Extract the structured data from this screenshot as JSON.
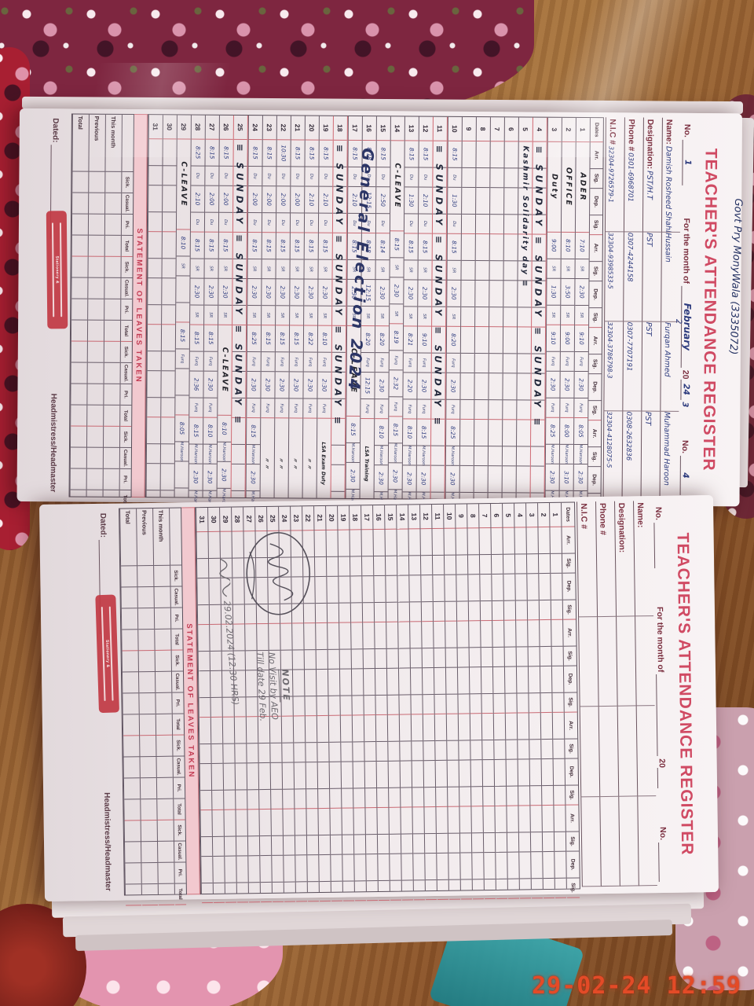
{
  "photo": {
    "timestamp": "29-02-24  12:59"
  },
  "form": {
    "title": "TEACHER'S ATTENDANCE REGISTER",
    "no_label": "No.",
    "month_label": "For the month of",
    "year_prefix": "20",
    "name_label": "Name:",
    "designation_label": "Designation:",
    "phone_label": "Phone #",
    "nic_label": "N.I.C #",
    "dates_label": "Dates",
    "col_headers": [
      "Arr.",
      "Sig.",
      "Dep.",
      "Sig."
    ],
    "leaves_title": "STATEMENT OF LEAVES TAKEN",
    "leaves_cols": [
      "Sick.",
      "Casual.",
      "Pri.",
      "Total"
    ],
    "leaves_rows": [
      "This month",
      "Previous",
      "Total"
    ],
    "dated_label": "Dated:",
    "head_label": "Headmistress/Headmaster",
    "stamp_text": "Stationery &"
  },
  "page1": {
    "school_note": "Govt Pry MonyWala (3335072)",
    "month": "February",
    "year": "24",
    "col_numbers": [
      "1",
      "2",
      "3",
      "4"
    ],
    "teachers": [
      {
        "name": "Damish Rosheed Shahbaz",
        "designation": "PST/H.T",
        "phone": "0301-6968701",
        "nic": "32304-9726579-1",
        "sig": "Du"
      },
      {
        "name": "Hussain",
        "designation": "PST",
        "phone": "0307-4244158",
        "nic": "32304-9398533-5",
        "sig": "SR"
      },
      {
        "name": "Furqan Ahmed",
        "designation": "PST",
        "phone": "0307-7707191",
        "nic": "32304-3786798-3",
        "sig": "Furq"
      },
      {
        "name": "Muhammad Haroon",
        "designation": "PST",
        "phone": "0308-2632836",
        "nic": "32304-4128075-5",
        "sig": "M.Haroon"
      }
    ],
    "election_note": "General Election 2024",
    "rows": [
      {
        "d": "1",
        "g": [
          {
            "note": "ADER",
            "big": true
          },
          {
            "a": "7:10",
            "dp": "2:30"
          },
          {
            "a": "9:10",
            "dp": "2:30"
          },
          {
            "a": "8:05",
            "dp": "2:30"
          }
        ]
      },
      {
        "d": "2",
        "g": [
          {
            "note": "OFFICE",
            "big": true
          },
          {
            "a": "8:10",
            "dp": "3:50"
          },
          {
            "a": "9:00",
            "dp": "2:30"
          },
          {
            "a": "8:00",
            "dp": "3:10"
          }
        ]
      },
      {
        "d": "3",
        "g": [
          {
            "note": "Duty",
            "big": true
          },
          {
            "a": "9:00",
            "dp": "1:30"
          },
          {
            "a": "9:10",
            "dp": "2:30"
          },
          {
            "a": "8:25",
            "dp": "2:30"
          }
        ]
      },
      {
        "d": "4",
        "span": "≡ SUNDAY ≡ SUNDAY ≡ SUNDAY ≡",
        "cls": "week"
      },
      {
        "d": "5",
        "span": "Kashmir Solidarity day ≡",
        "spanCls": "small"
      },
      {
        "d": "6"
      },
      {
        "d": "7"
      },
      {
        "d": "8"
      },
      {
        "d": "9"
      },
      {
        "d": "10",
        "g": [
          {
            "a": "8:15",
            "dp": "1:30"
          },
          {
            "a": "8:15",
            "dp": "2:30"
          },
          {
            "a": "8:20",
            "dp": "2:30"
          },
          {
            "a": "8:25",
            "dp": "2:30"
          }
        ]
      },
      {
        "d": "11",
        "span": "≡ SUNDAY ≡ SUNDAY ≡ SUNDAY ≡",
        "cls": "week"
      },
      {
        "d": "12",
        "g": [
          {
            "a": "8:15",
            "dp": "2:10"
          },
          {
            "a": "8:15",
            "dp": "2:30"
          },
          {
            "a": "9:10",
            "dp": "2:30"
          },
          {
            "a": "8:15",
            "dp": "2:30"
          }
        ]
      },
      {
        "d": "13",
        "g": [
          {
            "a": "8:15",
            "dp": "1:30"
          },
          {
            "a": "8:15",
            "dp": "2:30"
          },
          {
            "a": "8:21",
            "dp": "2:20"
          },
          {
            "a": "8:10",
            "dp": "2:30"
          }
        ]
      },
      {
        "d": "14",
        "g": [
          {
            "note": "C-LEAVE",
            "big": true
          },
          {
            "a": "8:15",
            "dp": "2:30"
          },
          {
            "a": "8:19",
            "dp": "2:32"
          },
          {
            "a": "8:15",
            "dp": "2:30"
          }
        ]
      },
      {
        "d": "15",
        "g": [
          {
            "a": "8:15",
            "dp": "2:50"
          },
          {
            "a": "8:14",
            "dp": "2:30"
          },
          {
            "a": "8:20",
            "dp": "2:30"
          },
          {
            "a": "8:10",
            "dp": "2:30"
          }
        ]
      },
      {
        "d": "16",
        "g": [
          {
            "a": "8:18",
            "dp": "12:15"
          },
          {
            "a": "8:18",
            "dp": "12:15"
          },
          {
            "a": "8:20",
            "dp": "12:15"
          },
          {
            "note": "LSA Training"
          }
        ]
      },
      {
        "d": "17",
        "g": [
          {
            "a": "8:15",
            "dp": "2:10"
          },
          {
            "a": "8:15",
            "dp": "2:30"
          },
          {
            "note": "C-LEAVE",
            "big": true
          },
          {
            "a": "8:15",
            "dp": "2:30"
          }
        ]
      },
      {
        "d": "18",
        "span": "≡ SUNDAY ≡ SUNDAY ≡ SUNDAY ≡",
        "cls": "week"
      },
      {
        "d": "19",
        "g": [
          {
            "a": "8:15",
            "dp": "2:10"
          },
          {
            "a": "8:15",
            "dp": "2:30"
          },
          {
            "a": "8:10",
            "dp": "2:30"
          },
          {
            "note": "LSA Exam Duty"
          }
        ]
      },
      {
        "d": "20",
        "g": [
          {
            "a": "8:15",
            "dp": "2:10"
          },
          {
            "a": "8:15",
            "dp": "2:30"
          },
          {
            "a": "8:22",
            "dp": "2:30"
          },
          {
            "note": "〃  〃"
          }
        ]
      },
      {
        "d": "21",
        "g": [
          {
            "a": "8:15",
            "dp": "2:00"
          },
          {
            "a": "8:15",
            "dp": "2:30"
          },
          {
            "a": "8:15",
            "dp": "2:30"
          },
          {
            "note": "〃  〃"
          }
        ]
      },
      {
        "d": "22",
        "g": [
          {
            "a": "10:30",
            "dp": "2:00"
          },
          {
            "a": "8:15",
            "dp": "2:30"
          },
          {
            "a": "8:15",
            "dp": "2:30"
          },
          {
            "note": "〃  〃"
          }
        ]
      },
      {
        "d": "23",
        "g": [
          {
            "a": "8:15",
            "dp": "2:00"
          },
          {
            "a": "8:15",
            "dp": "2:30"
          },
          {
            "a": "8:15",
            "dp": "2:30"
          },
          {
            "note": "〃  〃"
          }
        ]
      },
      {
        "d": "24",
        "g": [
          {
            "a": "8:15",
            "dp": "2:00"
          },
          {
            "a": "8:15",
            "dp": "2:30"
          },
          {
            "a": "8:25",
            "dp": "2:30"
          },
          {
            "a": "8:15",
            "dp": "2:30"
          }
        ]
      },
      {
        "d": "25",
        "span": "≡ SUNDAY ≡ SUNDAY ≡ SUNDAY ≡",
        "cls": "week"
      },
      {
        "d": "26",
        "g": [
          {
            "a": "8:15",
            "dp": "2:00"
          },
          {
            "a": "8:15",
            "dp": "2:30"
          },
          {
            "note": "C-LEAVE",
            "big": true
          },
          {
            "a": "8:10",
            "dp": "2:30"
          }
        ]
      },
      {
        "d": "27",
        "g": [
          {
            "a": "8:15",
            "dp": "2:00"
          },
          {
            "a": "8:15",
            "dp": "2:30"
          },
          {
            "a": "8:15",
            "dp": "2:30"
          },
          {
            "a": "8:10",
            "dp": "2:30"
          }
        ]
      },
      {
        "d": "28",
        "g": [
          {
            "a": "8:25",
            "dp": "2:10"
          },
          {
            "a": "8:15",
            "dp": "2:30"
          },
          {
            "a": "8:15",
            "dp": "2:36"
          },
          {
            "a": "8:15",
            "dp": "2:30"
          }
        ]
      },
      {
        "d": "29",
        "g": [
          {
            "note": "C-LEAVE",
            "big": true
          },
          {
            "a": "8:10"
          },
          {
            "a": "8:15"
          },
          {
            "a": "8:05"
          }
        ]
      },
      {
        "d": "30"
      },
      {
        "d": "31"
      }
    ]
  },
  "page2": {
    "note_title": "NOTE",
    "note_lines": [
      "No Visit by AEO",
      "Till date 29 Feb."
    ],
    "band_note": "29.02.2024  (12:30 HRS)"
  }
}
